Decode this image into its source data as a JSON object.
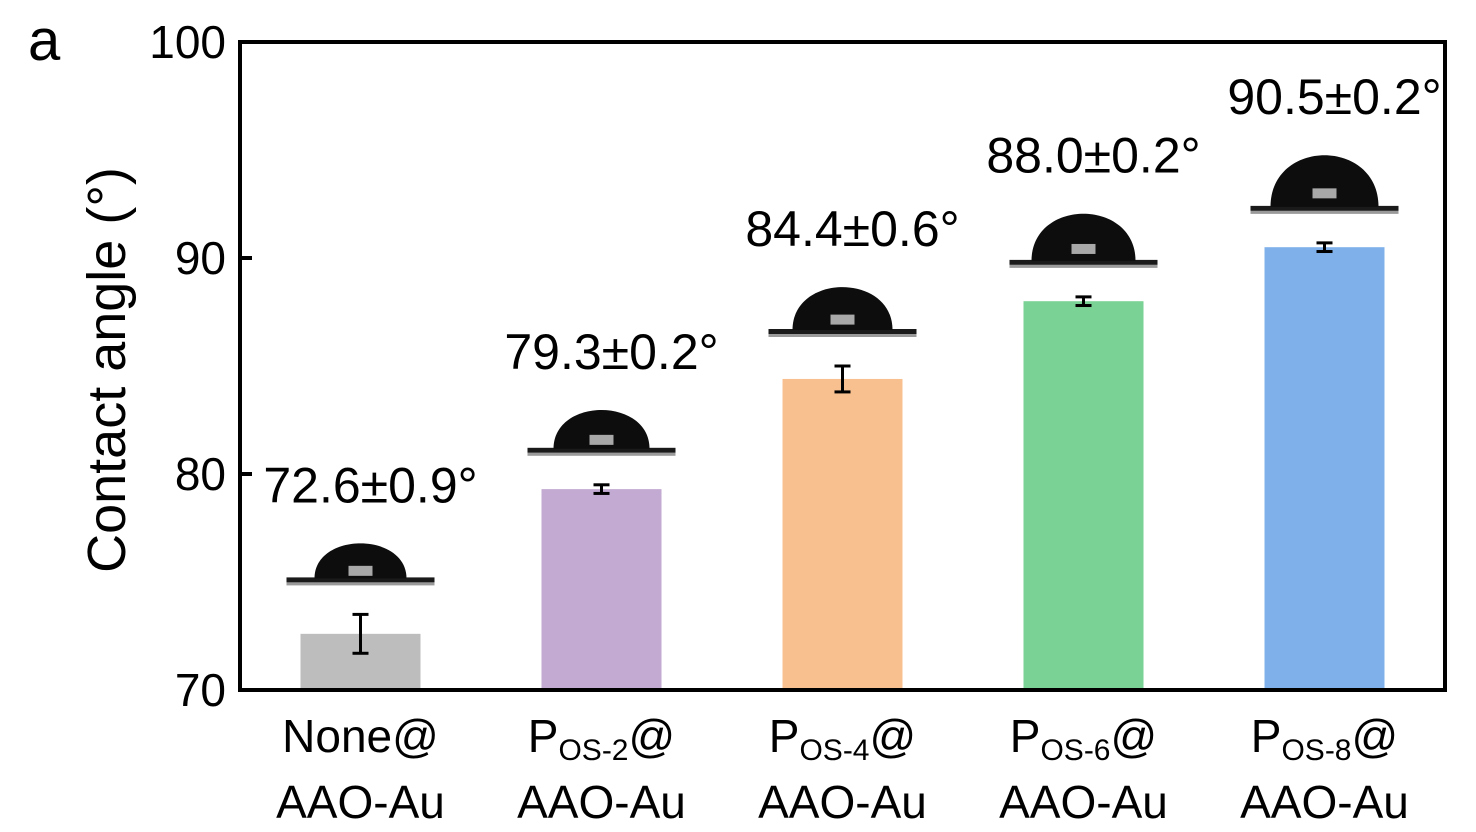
{
  "panel_label": "a",
  "chart_data": {
    "type": "bar",
    "ylabel": "Contact angle (°)",
    "ylim": [
      70,
      100
    ],
    "yticks": [
      70,
      80,
      90,
      100
    ],
    "grid": false,
    "categories": [
      {
        "main": "None@",
        "sub": "",
        "suffix": "",
        "line2": "AAO-Au"
      },
      {
        "main": "P",
        "sub": "OS-2",
        "suffix": "@",
        "line2": "AAO-Au"
      },
      {
        "main": "P",
        "sub": "OS-4",
        "suffix": "@",
        "line2": "AAO-Au"
      },
      {
        "main": "P",
        "sub": "OS-6",
        "suffix": "@",
        "line2": "AAO-Au"
      },
      {
        "main": "P",
        "sub": "OS-8",
        "suffix": "@",
        "line2": "AAO-Au"
      }
    ],
    "values": [
      72.6,
      79.3,
      84.4,
      88.0,
      90.5
    ],
    "errors": [
      0.9,
      0.2,
      0.6,
      0.2,
      0.2
    ],
    "data_labels": [
      "72.6±0.9°",
      "79.3±0.2°",
      "84.4±0.6°",
      "88.0±0.2°",
      "90.5±0.2°"
    ],
    "colors": [
      "#bdbdbd",
      "#c2aad2",
      "#f8c08f",
      "#7ad294",
      "#7fb0ea"
    ],
    "insets": [
      "droplet image",
      "droplet image",
      "droplet image",
      "droplet image",
      "droplet image"
    ]
  }
}
